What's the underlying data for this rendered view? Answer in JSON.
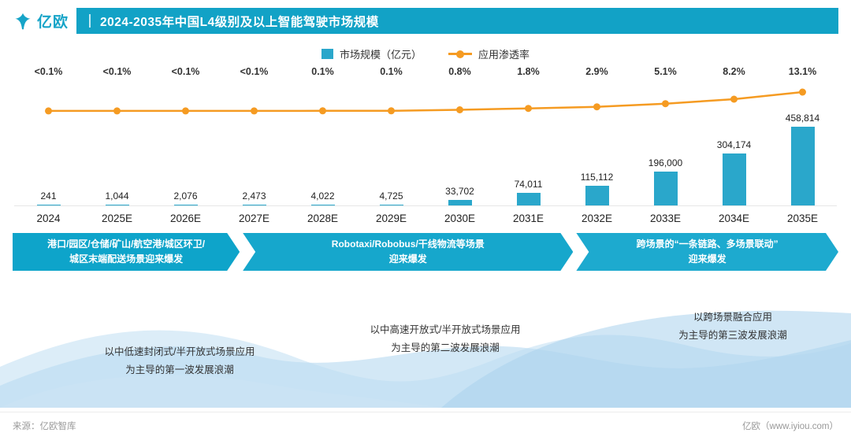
{
  "header": {
    "logo_text": "亿欧",
    "title": "2024-2035年中国L4级别及以上智能驾驶市场规模"
  },
  "legend": {
    "bar_label": "市场规模（亿元）",
    "line_label": "应用渗透率"
  },
  "colors": {
    "teal_band": "#12a2c6",
    "bar": "#2aa7cb",
    "orange": "#f59b22"
  },
  "chart_data": {
    "type": "bar",
    "title": "2024-2035年中国L4级别及以上智能驾驶市场规模",
    "categories": [
      "2024",
      "2025E",
      "2026E",
      "2027E",
      "2028E",
      "2029E",
      "2030E",
      "2031E",
      "2032E",
      "2033E",
      "2034E",
      "2035E"
    ],
    "series": [
      {
        "name": "市场规模（亿元）",
        "type": "bar",
        "values": [
          241,
          1044,
          2076,
          2473,
          4022,
          4725,
          33702,
          74011,
          115112,
          196000,
          304174,
          458814
        ],
        "labels": [
          "241",
          "1,044",
          "2,076",
          "2,473",
          "4,022",
          "4,725",
          "33,702",
          "74,011",
          "115,112",
          "196,000",
          "304,174",
          "458,814"
        ]
      },
      {
        "name": "应用渗透率",
        "type": "line",
        "values": [
          0.05,
          0.05,
          0.05,
          0.05,
          0.1,
          0.1,
          0.8,
          1.8,
          2.9,
          5.1,
          8.2,
          13.1
        ],
        "labels": [
          "<0.1%",
          "<0.1%",
          "<0.1%",
          "<0.1%",
          "0.1%",
          "0.1%",
          "0.8%",
          "1.8%",
          "2.9%",
          "5.1%",
          "8.2%",
          "13.1%"
        ]
      }
    ],
    "legend_position": "top",
    "grid": false
  },
  "stages": [
    {
      "line1": "港口/园区/仓储/矿山/航空港/城区环卫/",
      "line2": "城区末端配送场景迎来爆发"
    },
    {
      "line1": "Robotaxi/Robobus/干线物流等场景",
      "line2": "迎来爆发"
    },
    {
      "line1": "跨场景的“一条链路、多场景联动”",
      "line2": "迎来爆发"
    }
  ],
  "waves": [
    {
      "line1": "以中低速封闭式/半开放式场景应用",
      "line2": "为主导的第一波发展浪潮"
    },
    {
      "line1": "以中高速开放式/半开放式场景应用",
      "line2": "为主导的第二波发展浪潮"
    },
    {
      "line1": "以跨场景融合应用",
      "line2": "为主导的第三波发展浪潮"
    }
  ],
  "footer": {
    "source": "来源：亿欧智库",
    "site": "亿欧（www.iyiou.com）"
  }
}
